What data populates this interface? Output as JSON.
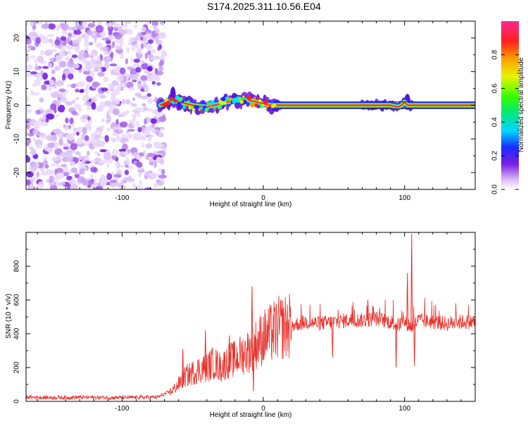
{
  "chart_data": [
    {
      "type": "heatmap",
      "title": "S174.2025.311.10.56.E04",
      "xlabel": "Height of straight line (km)",
      "ylabel": "Frequency (Hz)",
      "xlim": [
        -168,
        150
      ],
      "ylim": [
        -25,
        25
      ],
      "xticks": [
        -100,
        0,
        100
      ],
      "yticks": [
        -20,
        -10,
        0,
        10,
        20
      ],
      "xtick_labels": [
        "-100",
        "0",
        "100"
      ],
      "ytick_labels": [
        "-20",
        "-10",
        "0",
        "10",
        "20"
      ],
      "noise_region_x": [
        -168,
        -73
      ],
      "signal_track": {
        "x": [
          -73,
          -65,
          -60,
          -50,
          -40,
          -30,
          -20,
          -10,
          0,
          5,
          10,
          20,
          40,
          60,
          72,
          80,
          90,
          95,
          98,
          100,
          102,
          105,
          120,
          150
        ],
        "freq": [
          0,
          1.5,
          1,
          0,
          -0.5,
          0.5,
          1.5,
          1.5,
          0.5,
          0,
          0,
          0,
          0,
          0,
          0,
          0,
          0,
          -0.5,
          0,
          1,
          0,
          0,
          0,
          0
        ]
      },
      "colorbar": {
        "label": "Normalized spectral amplitude",
        "range": [
          0,
          1
        ],
        "ticks": [
          0.0,
          0.2,
          0.4,
          0.6,
          0.8
        ],
        "tick_labels": [
          "0.0",
          "0.2",
          "0.4",
          "0.6",
          "0.8"
        ]
      }
    },
    {
      "type": "line",
      "xlabel": "Height of straight line (km)",
      "ylabel": "SNR (10 * v/v)",
      "xlim": [
        -168,
        150
      ],
      "ylim": [
        0,
        1000
      ],
      "xticks": [
        -100,
        0,
        100
      ],
      "yticks": [
        0,
        200,
        400,
        600,
        800
      ],
      "xtick_labels": [
        "-100",
        "0",
        "100"
      ],
      "ytick_labels": [
        "0",
        "200",
        "400",
        "600",
        "800"
      ],
      "color": "#e8322b",
      "series": [
        {
          "name": "SNR",
          "x": [
            -168,
            -150,
            -130,
            -110,
            -90,
            -75,
            -65,
            -60,
            -55,
            -50,
            -45,
            -40,
            -35,
            -30,
            -25,
            -20,
            -15,
            -10,
            -5,
            0,
            5,
            10,
            15,
            20,
            30,
            40,
            50,
            60,
            70,
            80,
            90,
            95,
            100,
            105,
            110,
            120,
            130,
            140,
            150
          ],
          "y": [
            25,
            22,
            24,
            22,
            23,
            25,
            60,
            100,
            150,
            170,
            190,
            200,
            230,
            200,
            240,
            250,
            280,
            300,
            340,
            380,
            400,
            430,
            440,
            450,
            470,
            460,
            470,
            480,
            480,
            490,
            470,
            450,
            470,
            440,
            480,
            470,
            460,
            470,
            470
          ]
        }
      ],
      "spikes": [
        {
          "x": -57,
          "y": 310
        },
        {
          "x": -41,
          "y": 420
        },
        {
          "x": -24,
          "y": 390
        },
        {
          "x": -8,
          "y": 680
        },
        {
          "x": -7,
          "y": 60
        },
        {
          "x": 49,
          "y": 260
        },
        {
          "x": 74,
          "y": 600
        },
        {
          "x": 94,
          "y": 200
        },
        {
          "x": 102,
          "y": 760
        },
        {
          "x": 105,
          "y": 990
        },
        {
          "x": 107,
          "y": 210
        }
      ]
    }
  ]
}
